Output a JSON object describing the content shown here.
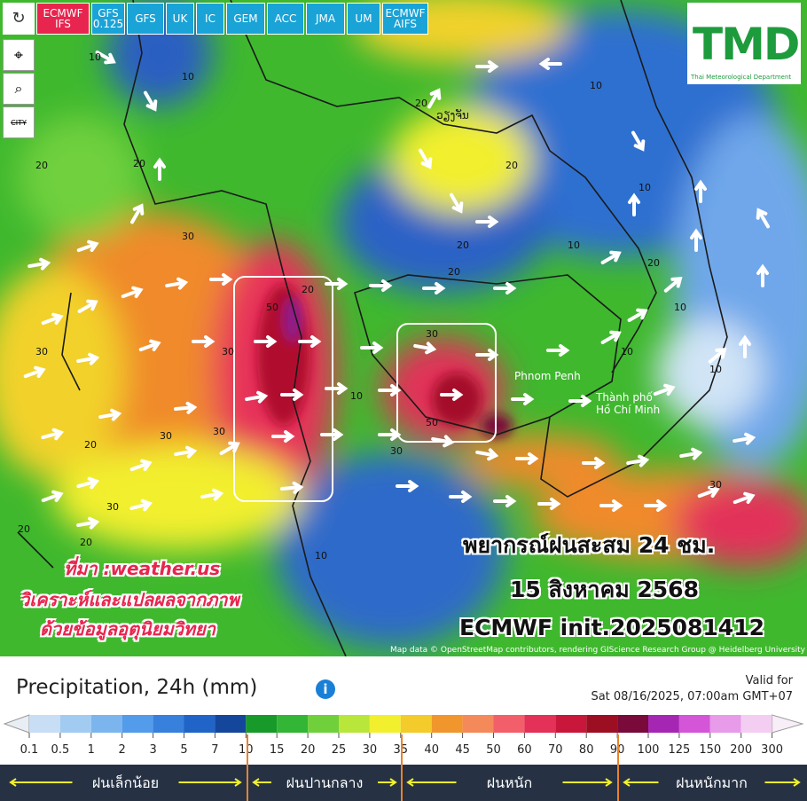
{
  "toolbar": {
    "buttons": [
      "ECMWF IFS",
      "GFS 0.125",
      "GFS",
      "UK",
      "IC",
      "GEM",
      "ACC",
      "JMA",
      "UM",
      "ECMWF AIFS"
    ],
    "side_tools": [
      "CITY"
    ]
  },
  "logo": {
    "title": "TMD",
    "subtitle": "Thai Meteorological Department"
  },
  "map": {
    "places": [
      "ວຽງຈັນ",
      "Phnom Penh",
      "Thành phố",
      "Hồ Chí Minh"
    ],
    "contour_labels": [
      "10",
      "10",
      "20",
      "20",
      "20",
      "30",
      "30",
      "30",
      "30",
      "20",
      "10",
      "20",
      "20",
      "10",
      "10",
      "20",
      "10",
      "10",
      "10",
      "30",
      "30",
      "50",
      "20",
      "30",
      "20",
      "10",
      "30",
      "20",
      "10",
      "20",
      "30",
      "50"
    ],
    "attribution": "Map data © OpenStreetMap contributors, rendering GIScience Research Group @ Heidelberg University"
  },
  "overlay": {
    "source": [
      "ที่มา :weather.us",
      "วิเคราะห์และแปลผลจากภาพ",
      "ด้วยข้อมูลอุตุนิยมวิทยา"
    ],
    "headline": [
      "พยากรณ์ฝนสะสม 24 ชม.",
      "15 สิงหาคม 2568",
      "ECMWF init.2025081412"
    ]
  },
  "legend": {
    "title": "Precipitation, 24h (mm)",
    "info": "i",
    "valid_label": "Valid for",
    "valid_time": "Sat 08/16/2025, 07:00am GMT+07",
    "ticks": [
      0.1,
      0.5,
      1,
      2,
      3,
      5,
      7,
      10,
      15,
      20,
      25,
      30,
      35,
      40,
      45,
      50,
      60,
      70,
      80,
      90,
      100,
      125,
      150,
      200,
      300
    ],
    "colors": [
      "#c7def4",
      "#a2cbf1",
      "#7cb5ee",
      "#539beb",
      "#3780dc",
      "#2064c8",
      "#14469c",
      "#179a2a",
      "#33b536",
      "#6fd03c",
      "#b9e63a",
      "#f2ef2e",
      "#f3cb2a",
      "#f0962c",
      "#f48a5a",
      "#f25f6a",
      "#e33158",
      "#c8173a",
      "#9c0f22",
      "#7a0a3a",
      "#a626b4",
      "#d455d8",
      "#e89be8",
      "#f3cdf2"
    ],
    "categories": [
      "ฝนเล็กน้อย",
      "ฝนปานกลาง",
      "ฝนหนัก",
      "ฝนหนักมาก"
    ]
  }
}
